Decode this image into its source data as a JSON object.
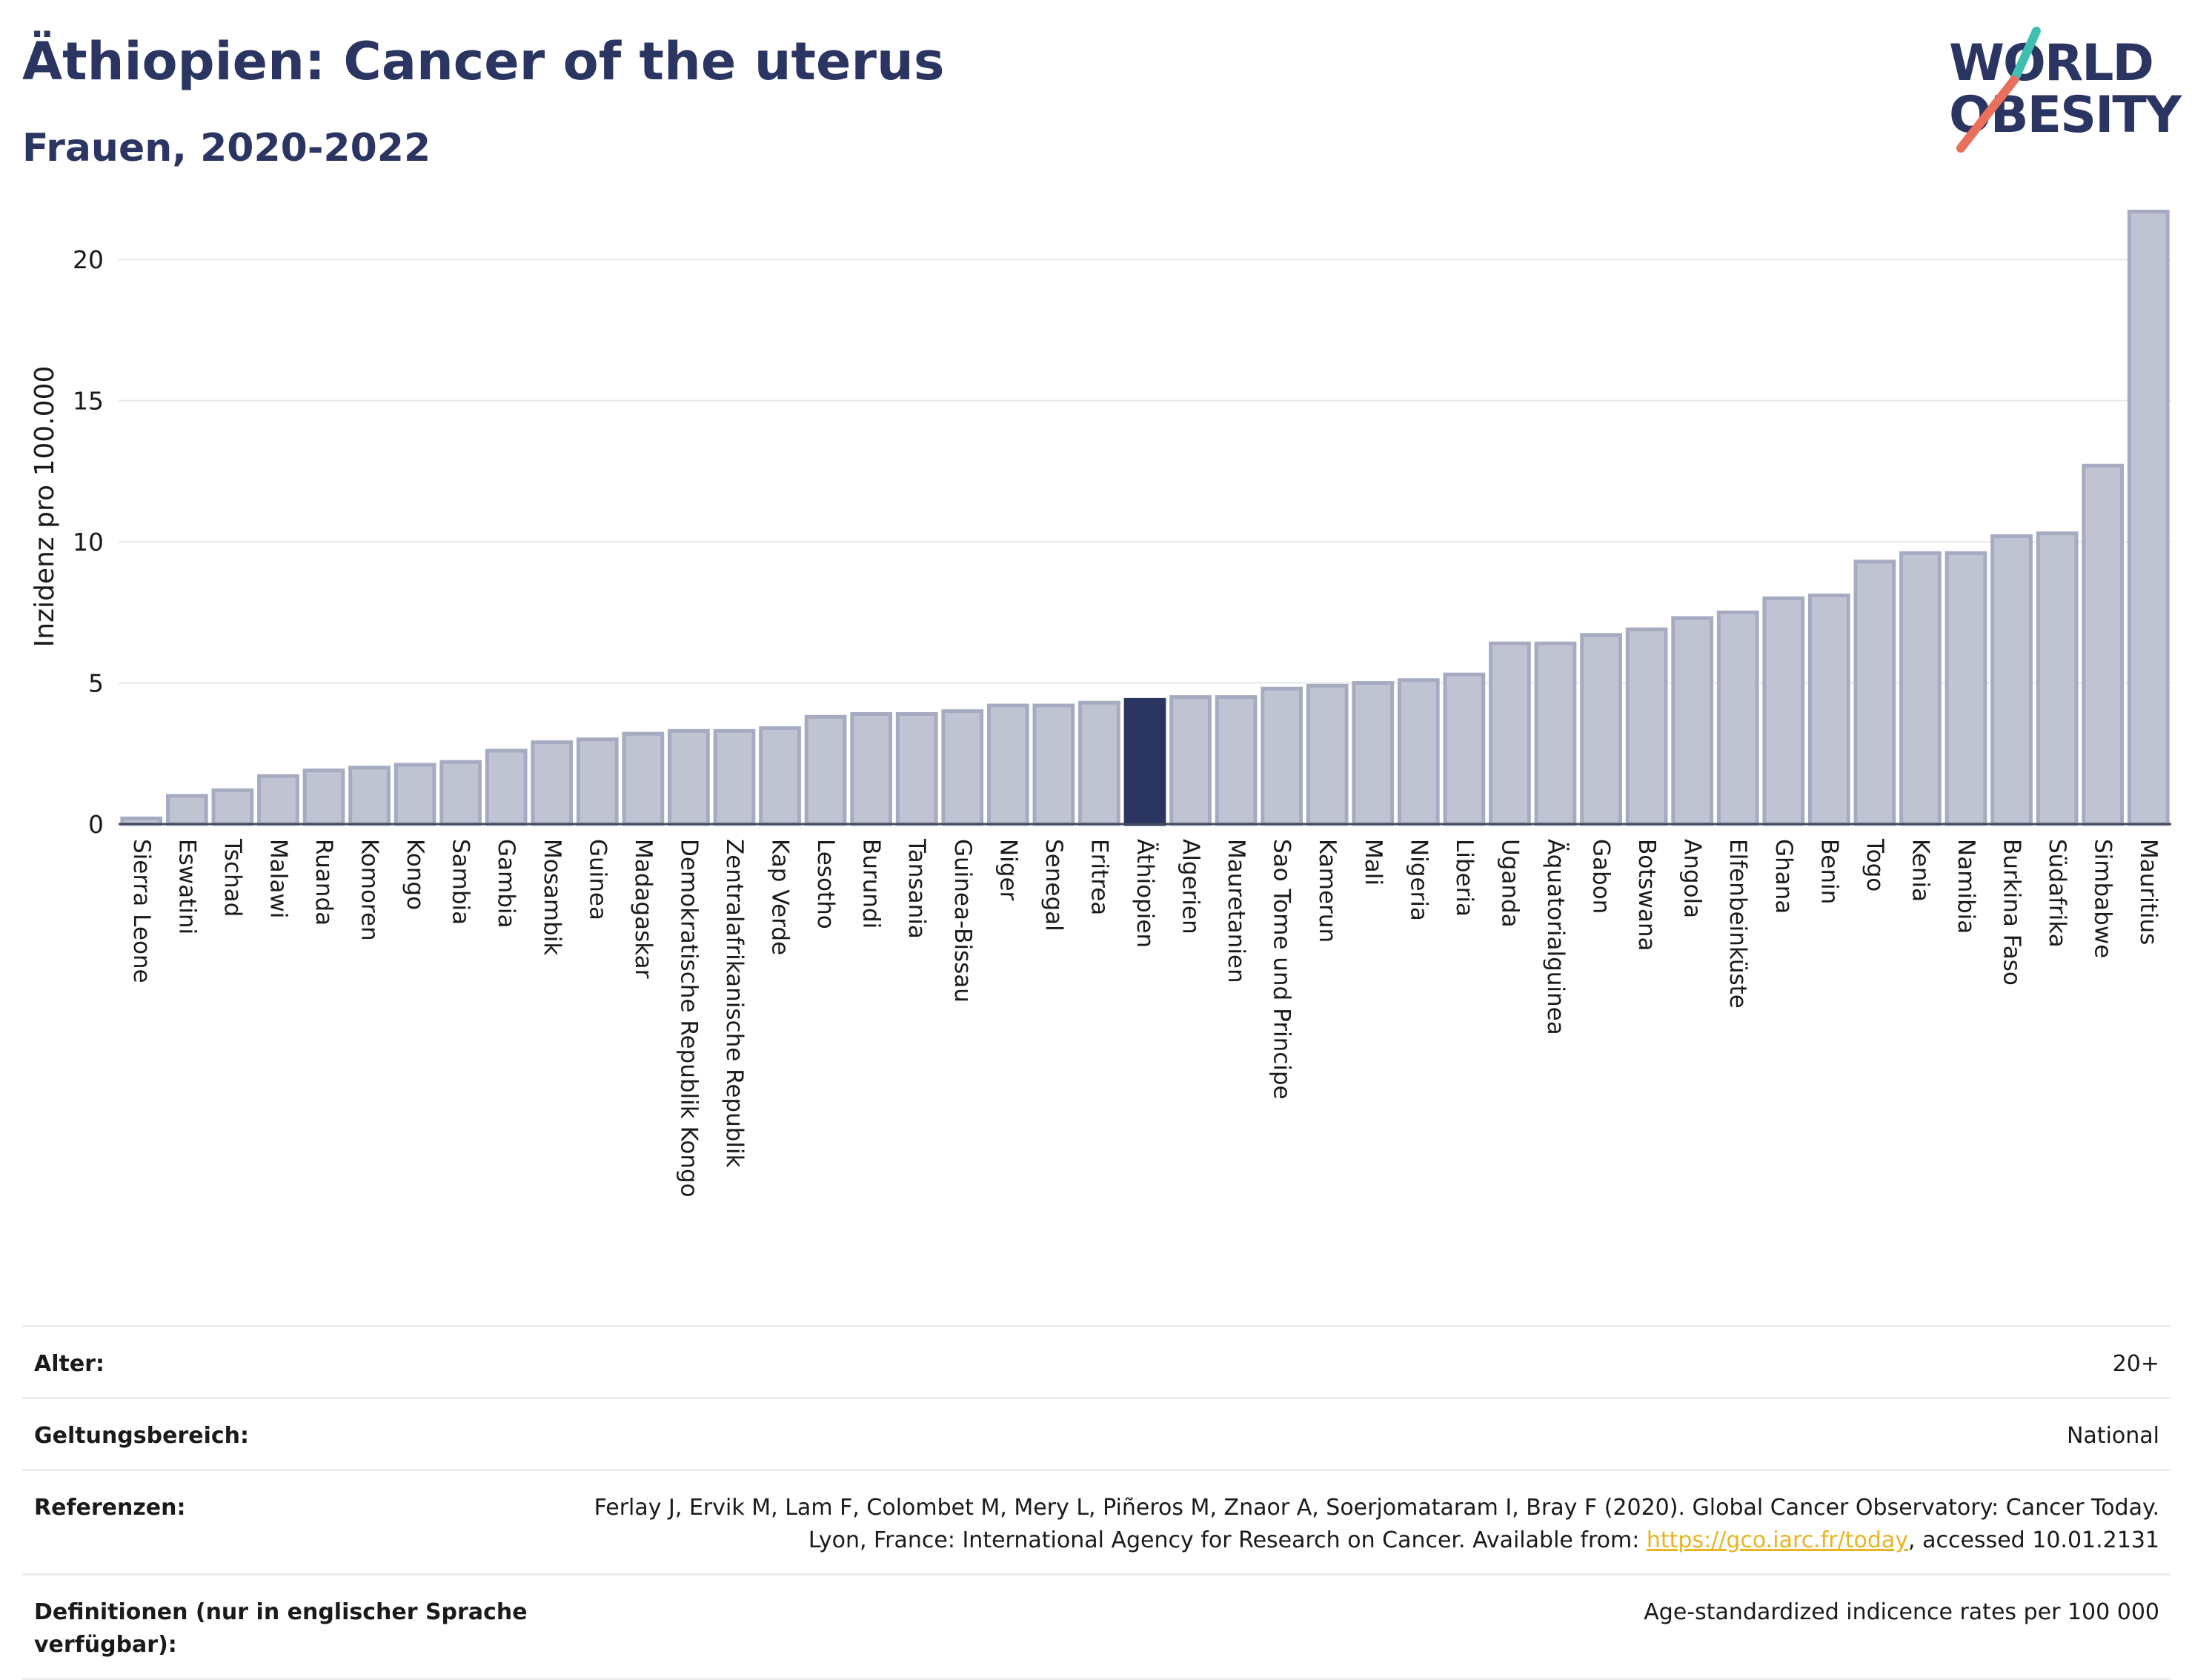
{
  "header": {
    "title": "Äthiopien: Cancer of the uterus",
    "subtitle": "Frauen, 2020-2022"
  },
  "logo": {
    "line1": "WORLD",
    "line2": "OBESITY",
    "colors": {
      "text": "#2b3561",
      "slash_top": "#3fbfb0",
      "slash_bottom": "#e8705d"
    }
  },
  "chart_data": {
    "type": "bar",
    "title": "Äthiopien: Cancer of the uterus",
    "subtitle": "Frauen, 2020-2022",
    "ylabel": "Inzidenz pro 100.000",
    "xlabel": "",
    "ylim": [
      0,
      22.5
    ],
    "yticks": [
      0,
      5,
      10,
      15,
      20
    ],
    "grid": true,
    "highlight": "Äthiopien",
    "colors": {
      "bar": "#c0c4d2",
      "bar_edge": "#a6abc2",
      "highlight": "#2b3561"
    },
    "categories": [
      "Sierra Leone",
      "Eswatini",
      "Tschad",
      "Malawi",
      "Ruanda",
      "Komoren",
      "Kongo",
      "Sambia",
      "Gambia",
      "Mosambik",
      "Guinea",
      "Madagaskar",
      "Demokratische Republik Kongo",
      "Zentralafrikanische Republik",
      "Kap Verde",
      "Lesotho",
      "Burundi",
      "Tansania",
      "Guinea-Bissau",
      "Niger",
      "Senegal",
      "Eritrea",
      "Äthiopien",
      "Algerien",
      "Mauretanien",
      "Sao Tome und Principe",
      "Kamerun",
      "Mali",
      "Nigeria",
      "Liberia",
      "Uganda",
      "Äquatorialguinea",
      "Gabon",
      "Botswana",
      "Angola",
      "Elfenbeinküste",
      "Ghana",
      "Benin",
      "Togo",
      "Kenia",
      "Namibia",
      "Burkina Faso",
      "Südafrika",
      "Simbabwe",
      "Mauritius"
    ],
    "values": [
      0.2,
      1.0,
      1.2,
      1.7,
      1.9,
      2.0,
      2.1,
      2.2,
      2.6,
      2.9,
      3.0,
      3.2,
      3.3,
      3.3,
      3.4,
      3.8,
      3.9,
      3.9,
      4.0,
      4.2,
      4.2,
      4.3,
      4.4,
      4.5,
      4.5,
      4.8,
      4.9,
      5.0,
      5.1,
      5.3,
      6.4,
      6.4,
      6.7,
      6.9,
      7.3,
      7.5,
      8.0,
      8.1,
      9.3,
      9.6,
      9.6,
      10.2,
      10.3,
      12.7,
      21.7
    ]
  },
  "meta": {
    "rows": [
      {
        "label": "Alter:",
        "value": "20+"
      },
      {
        "label": "Geltungsbereich:",
        "value": "National"
      },
      {
        "label": "Referenzen:",
        "value_part1": "Ferlay J, Ervik M, Lam F, Colombet M, Mery L, Piñeros M, Znaor A, Soerjomataram I, Bray F (2020). Global Cancer Observatory: Cancer Today. Lyon, France: International Agency for Research on Cancer. Available from: ",
        "link": "https://gco.iarc.fr/today",
        "value_part2": ", accessed 10.01.2131"
      },
      {
        "label": "Definitionen (nur in englischer Sprache verfügbar):",
        "value": "Age-standardized indicence rates per 100 000"
      }
    ]
  }
}
